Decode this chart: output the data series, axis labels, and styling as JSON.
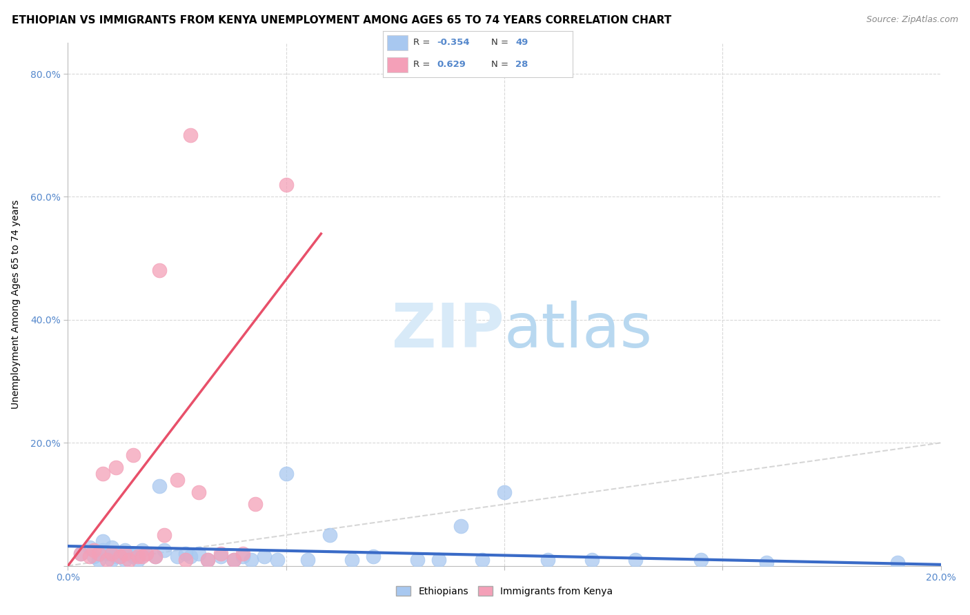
{
  "title": "ETHIOPIAN VS IMMIGRANTS FROM KENYA UNEMPLOYMENT AMONG AGES 65 TO 74 YEARS CORRELATION CHART",
  "source": "Source: ZipAtlas.com",
  "ylabel": "Unemployment Among Ages 65 to 74 years",
  "xlim": [
    0.0,
    0.2
  ],
  "ylim": [
    0.0,
    0.85
  ],
  "yticks": [
    0.0,
    0.2,
    0.4,
    0.6,
    0.8
  ],
  "ytick_labels": [
    "",
    "20.0%",
    "40.0%",
    "60.0%",
    "80.0%"
  ],
  "xticks": [
    0.0,
    0.05,
    0.1,
    0.15,
    0.2
  ],
  "xtick_labels": [
    "0.0%",
    "",
    "",
    "",
    "20.0%"
  ],
  "blue_color": "#a8c8f0",
  "pink_color": "#f4a0b8",
  "blue_line_color": "#3a6bc7",
  "pink_line_color": "#e8506a",
  "grid_color": "#d8d8d8",
  "diagonal_color": "#cccccc",
  "tick_color": "#5588cc",
  "watermark_color": "#d8eaf8",
  "title_fontsize": 11,
  "axis_label_fontsize": 10,
  "tick_fontsize": 10,
  "ethiopian_x": [
    0.003,
    0.005,
    0.006,
    0.007,
    0.008,
    0.008,
    0.009,
    0.01,
    0.01,
    0.011,
    0.011,
    0.012,
    0.013,
    0.013,
    0.014,
    0.015,
    0.016,
    0.017,
    0.018,
    0.02,
    0.021,
    0.022,
    0.025,
    0.027,
    0.028,
    0.03,
    0.032,
    0.035,
    0.038,
    0.04,
    0.042,
    0.045,
    0.048,
    0.05,
    0.055,
    0.06,
    0.065,
    0.07,
    0.08,
    0.085,
    0.09,
    0.095,
    0.1,
    0.11,
    0.12,
    0.13,
    0.145,
    0.16,
    0.19
  ],
  "ethiopian_y": [
    0.02,
    0.03,
    0.015,
    0.01,
    0.025,
    0.04,
    0.02,
    0.03,
    0.01,
    0.015,
    0.02,
    0.015,
    0.025,
    0.01,
    0.02,
    0.015,
    0.01,
    0.025,
    0.02,
    0.015,
    0.13,
    0.025,
    0.015,
    0.02,
    0.015,
    0.02,
    0.01,
    0.015,
    0.01,
    0.015,
    0.01,
    0.015,
    0.01,
    0.15,
    0.01,
    0.05,
    0.01,
    0.015,
    0.01,
    0.01,
    0.065,
    0.01,
    0.12,
    0.01,
    0.01,
    0.01,
    0.01,
    0.005,
    0.005
  ],
  "kenya_x": [
    0.003,
    0.005,
    0.006,
    0.007,
    0.008,
    0.009,
    0.01,
    0.011,
    0.012,
    0.013,
    0.014,
    0.015,
    0.016,
    0.017,
    0.018,
    0.02,
    0.021,
    0.022,
    0.025,
    0.027,
    0.028,
    0.03,
    0.032,
    0.035,
    0.038,
    0.04,
    0.043,
    0.05
  ],
  "kenya_y": [
    0.02,
    0.015,
    0.025,
    0.02,
    0.15,
    0.01,
    0.02,
    0.16,
    0.015,
    0.02,
    0.01,
    0.18,
    0.015,
    0.015,
    0.02,
    0.015,
    0.48,
    0.05,
    0.14,
    0.01,
    0.7,
    0.12,
    0.01,
    0.02,
    0.01,
    0.02,
    0.1,
    0.62
  ],
  "blue_trend_x": [
    0.0,
    0.2
  ],
  "blue_trend_y": [
    0.032,
    0.002
  ],
  "pink_trend_x": [
    0.0,
    0.058
  ],
  "pink_trend_y": [
    0.0,
    0.54
  ]
}
